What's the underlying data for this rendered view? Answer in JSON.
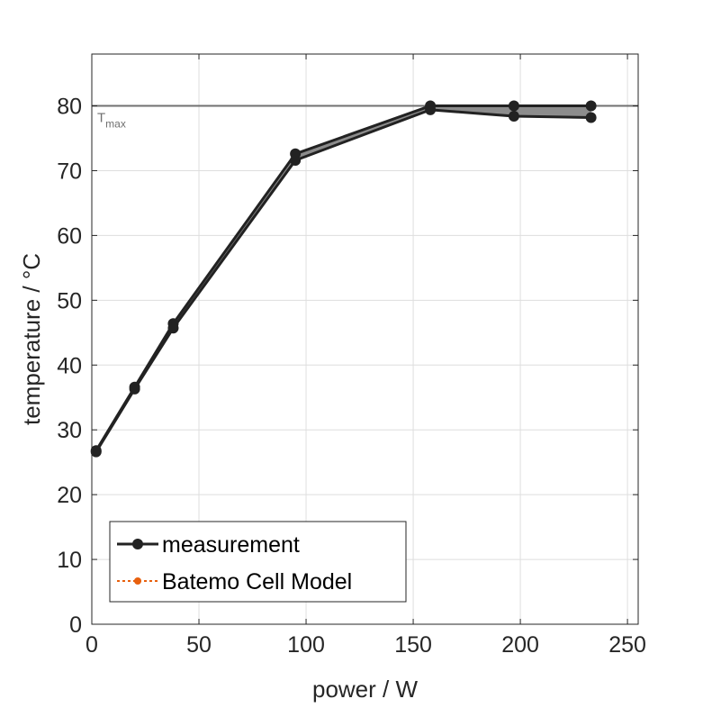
{
  "chart_data": {
    "type": "line",
    "title": "",
    "xlabel": "power / W",
    "ylabel": "temperature / °C",
    "xlim": [
      0,
      255
    ],
    "ylim": [
      0,
      88
    ],
    "xticks": [
      0,
      50,
      100,
      150,
      200,
      250
    ],
    "xtick_labels": [
      "0",
      "50",
      "100",
      "150",
      "200",
      "250"
    ],
    "yticks": [
      0,
      10,
      20,
      30,
      40,
      50,
      60,
      70,
      80
    ],
    "ytick_labels": [
      "0",
      "10",
      "20",
      "30",
      "40",
      "50",
      "60",
      "70",
      "80"
    ],
    "grid": true,
    "legend_position": "bottom-left",
    "reference_line": {
      "y": 80,
      "label_main": "T",
      "label_sub": "max",
      "color": "#707070"
    },
    "band": {
      "color": "#8c8c8c",
      "x": [
        2,
        20,
        38,
        95,
        158,
        197,
        233
      ],
      "upper": [
        26.8,
        36.6,
        46.4,
        72.6,
        80.0,
        80.0,
        80.0
      ],
      "lower": [
        26.6,
        36.3,
        45.7,
        71.6,
        79.4,
        78.4,
        78.2
      ]
    },
    "series": [
      {
        "name": "measurement",
        "color": "#222222",
        "line_style": "solid",
        "x": [
          2,
          20,
          38,
          95,
          158,
          197,
          233
        ],
        "y": [
          26.8,
          36.6,
          46.4,
          72.6,
          80.0,
          80.0,
          80.0
        ]
      },
      {
        "name": "",
        "color": "#222222",
        "line_style": "solid",
        "x": [
          2,
          20,
          38,
          95,
          158,
          197,
          233
        ],
        "y": [
          26.6,
          36.3,
          45.7,
          71.6,
          79.4,
          78.4,
          78.2
        ]
      },
      {
        "name": "Batemo Cell Model",
        "color": "#e8600e",
        "line_style": "dotted",
        "x": [],
        "y": []
      }
    ],
    "legend": [
      "measurement",
      "Batemo Cell Model"
    ]
  }
}
